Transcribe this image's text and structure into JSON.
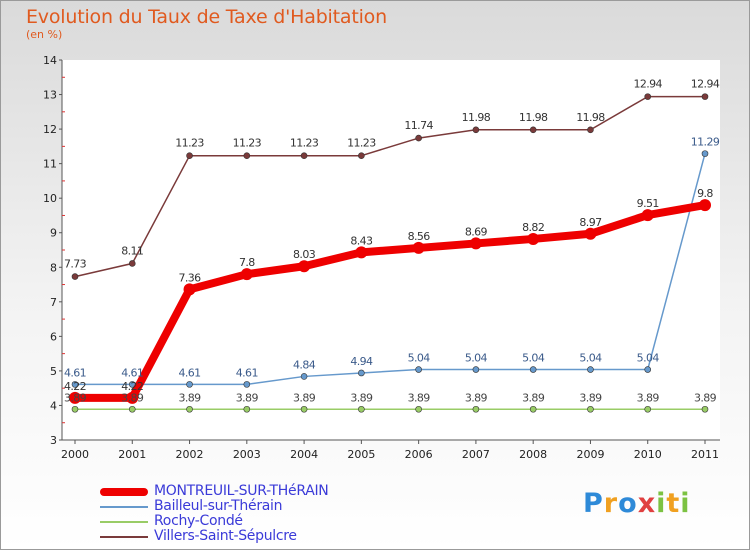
{
  "chart_data": {
    "type": "line",
    "title": "Evolution du Taux de Taxe d'Habitation",
    "subtitle": "(en %)",
    "xlabel": "",
    "ylabel": "",
    "ylim": [
      3,
      14
    ],
    "yticks": [
      "3",
      "4",
      "5",
      "6",
      "7",
      "8",
      "9",
      "10",
      "11",
      "12",
      "13",
      "14"
    ],
    "categories": [
      "2000",
      "2001",
      "2002",
      "2003",
      "2004",
      "2005",
      "2006",
      "2007",
      "2008",
      "2009",
      "2010",
      "2011"
    ],
    "grid": false,
    "series": [
      {
        "name": "MONTREUIL-SUR-THéRAIN",
        "color": "#ee0000",
        "values": [
          4.22,
          4.22,
          7.36,
          7.8,
          8.03,
          8.43,
          8.56,
          8.69,
          8.82,
          8.97,
          9.51,
          9.8
        ],
        "labels": [
          "4.22",
          "4.22",
          "7.36",
          "7.8",
          "8.03",
          "8.43",
          "8.56",
          "8.69",
          "8.82",
          "8.97",
          "9.51",
          "9.8"
        ]
      },
      {
        "name": "Bailleul-sur-Thérain",
        "color": "#6699cc",
        "values": [
          4.61,
          4.61,
          4.61,
          4.61,
          4.84,
          4.94,
          5.04,
          5.04,
          5.04,
          5.04,
          5.04,
          11.29
        ],
        "labels": [
          "4.61",
          "4.61",
          "4.61",
          "4.61",
          "4.84",
          "4.94",
          "5.04",
          "5.04",
          "5.04",
          "5.04",
          "5.04",
          "11.29"
        ]
      },
      {
        "name": "Rochy-Condé",
        "color": "#99cc66",
        "values": [
          3.89,
          3.89,
          3.89,
          3.89,
          3.89,
          3.89,
          3.89,
          3.89,
          3.89,
          3.89,
          3.89,
          3.89
        ],
        "labels": [
          "3.89",
          "3.89",
          "3.89",
          "3.89",
          "3.89",
          "3.89",
          "3.89",
          "3.89",
          "3.89",
          "3.89",
          "3.89",
          "3.89"
        ]
      },
      {
        "name": "Villers-Saint-Sépulcre",
        "color": "#7a3a3a",
        "values": [
          7.73,
          8.11,
          11.23,
          11.23,
          11.23,
          11.23,
          11.74,
          11.98,
          11.98,
          11.98,
          12.94,
          12.94
        ],
        "labels": [
          "7.73",
          "8.11",
          "11.23",
          "11.23",
          "11.23",
          "11.23",
          "11.74",
          "11.98",
          "11.98",
          "11.98",
          "12.94",
          "12.94"
        ]
      }
    ]
  },
  "logo": {
    "letters": [
      "P",
      "r",
      "o",
      "x",
      "i",
      "t",
      "i"
    ]
  }
}
